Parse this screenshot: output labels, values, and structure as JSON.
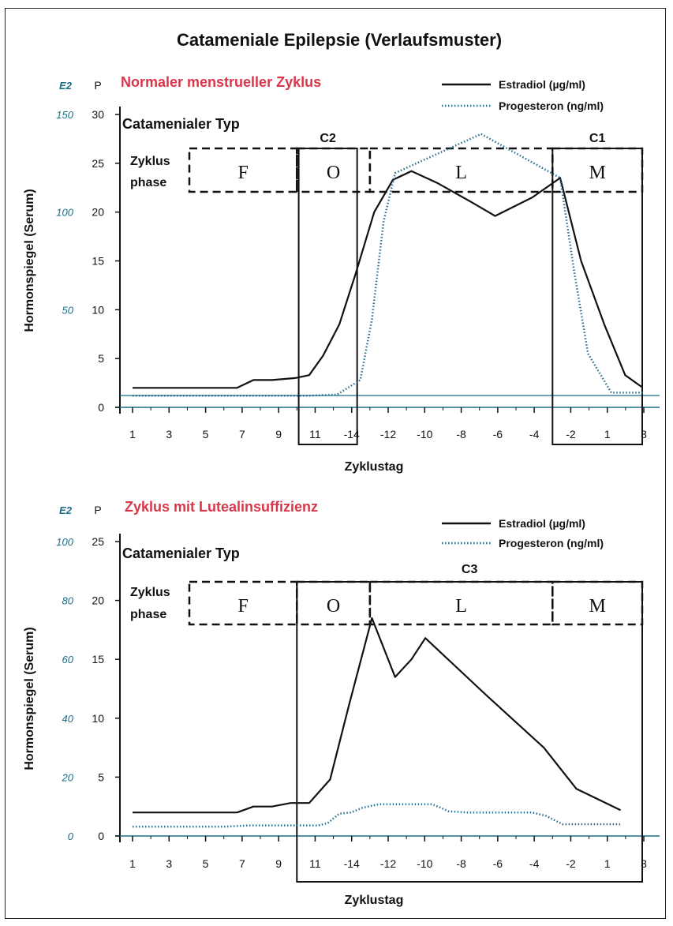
{
  "figure_title": "Catameniale Epilepsie (Verlaufsmuster)",
  "colors": {
    "subtitle": "#d9364a",
    "axis_teal": "#1a6e86",
    "estradiol": "#111111",
    "progesteron": "#2a6e8e",
    "line": "#111111"
  },
  "chart_data": [
    {
      "type": "line",
      "subtitle": "Normaler menstrueller Zyklus",
      "axis_label_e2": "E2",
      "axis_label_p": "P",
      "ylabel": "Hormonspiegel (Serum)",
      "xlabel": "Zyklustag",
      "type_label": "Catamenialer Typ",
      "phase_label_line1": "Zyklus",
      "phase_label_line2": "phase",
      "x_ticks": [
        "1",
        "3",
        "5",
        "7",
        "9",
        "11",
        "-14",
        "-12",
        "-10",
        "-8",
        "-6",
        "-4",
        "-2",
        "1",
        "3"
      ],
      "p_ticks": [
        "0",
        "5",
        "10",
        "15",
        "20",
        "25",
        "30"
      ],
      "p_tick_values": [
        0,
        5,
        10,
        15,
        20,
        25,
        30
      ],
      "e2_ticks": [
        "50",
        "100",
        "150"
      ],
      "e2_tick_values": [
        10,
        20,
        30
      ],
      "ylim_p": [
        0,
        30
      ],
      "legend": [
        "Estradiol (µg/ml)",
        "Progesteron (ng/ml)"
      ],
      "phases": [
        {
          "label": "F",
          "start": 0.5,
          "end": 5.5
        },
        {
          "label": "O",
          "start": 5.5,
          "end": 7.5
        },
        {
          "label": "L",
          "start": 7.5,
          "end": 12.5
        },
        {
          "label": "M",
          "start": 12.5,
          "end": 15.5
        }
      ],
      "catamenial_types": [
        {
          "label": "C2",
          "start": 5.55,
          "end": 7.15
        },
        {
          "label": "C1",
          "start": 12.5,
          "end": 15.45
        }
      ],
      "series": [
        {
          "name": "Estradiol (µg/ml)",
          "style": "solid",
          "points": [
            [
              1,
              2
            ],
            [
              2,
              2
            ],
            [
              3,
              2
            ],
            [
              4,
              2
            ],
            [
              5,
              2
            ],
            [
              5.5,
              2
            ],
            [
              6.2,
              2.8
            ],
            [
              7,
              2.8
            ],
            [
              8,
              3
            ],
            [
              8.6,
              3.3
            ],
            [
              9.2,
              5.3
            ],
            [
              9.9,
              8.5
            ],
            [
              10.6,
              13.7
            ],
            [
              11.4,
              20
            ],
            [
              12.2,
              23.3
            ],
            [
              13,
              24.2
            ],
            [
              14.1,
              23
            ],
            [
              15.6,
              21
            ],
            [
              16.6,
              19.6
            ],
            [
              18.2,
              21.5
            ],
            [
              19.4,
              23.5
            ],
            [
              20.3,
              15
            ],
            [
              21.3,
              8.5
            ],
            [
              22.2,
              3.3
            ],
            [
              22.9,
              2.1
            ]
          ]
        },
        {
          "name": "Progesteron (ng/ml)",
          "style": "dotted",
          "points": [
            [
              1,
              1.2
            ],
            [
              3,
              1.2
            ],
            [
              5,
              1.2
            ],
            [
              7,
              1.2
            ],
            [
              8.6,
              1.2
            ],
            [
              9.8,
              1.3
            ],
            [
              10.8,
              2.8
            ],
            [
              11.3,
              9
            ],
            [
              11.8,
              19
            ],
            [
              12.3,
              24
            ],
            [
              16,
              28
            ],
            [
              19.4,
              23.5
            ],
            [
              20,
              14
            ],
            [
              20.6,
              5.5
            ],
            [
              21.6,
              1.5
            ],
            [
              23,
              1.5
            ]
          ]
        }
      ]
    },
    {
      "type": "line",
      "subtitle": "Zyklus mit Lutealinsuffizienz",
      "axis_label_e2": "E2",
      "axis_label_p": "P",
      "ylabel": "Hormonspiegel (Serum)",
      "xlabel": "Zyklustag",
      "type_label": "Catamenialer Typ",
      "phase_label_line1": "Zyklus",
      "phase_label_line2": "phase",
      "x_ticks": [
        "1",
        "3",
        "5",
        "7",
        "9",
        "11",
        "-14",
        "-12",
        "-10",
        "-8",
        "-6",
        "-4",
        "-2",
        "1",
        "3"
      ],
      "p_ticks": [
        "0",
        "5",
        "10",
        "15",
        "20",
        "25"
      ],
      "p_tick_values": [
        0,
        5,
        10,
        15,
        20,
        25
      ],
      "e2_ticks": [
        "0",
        "20",
        "40",
        "60",
        "80",
        "100"
      ],
      "e2_tick_values": [
        0,
        5,
        10,
        15,
        20,
        25
      ],
      "ylim_p": [
        0,
        25
      ],
      "legend": [
        "Estradiol (µg/ml)",
        "Progesteron (ng/ml)"
      ],
      "phases": [
        {
          "label": "F",
          "start": 0.5,
          "end": 5.5
        },
        {
          "label": "O",
          "start": 5.5,
          "end": 7.5
        },
        {
          "label": "L",
          "start": 7.5,
          "end": 12.5
        },
        {
          "label": "M",
          "start": 12.5,
          "end": 15.5
        }
      ],
      "catamenial_types": [
        {
          "label": "C3",
          "start": 5.5,
          "end": 15.5
        }
      ],
      "series": [
        {
          "name": "Estradiol (µg/ml)",
          "style": "solid",
          "points": [
            [
              1,
              2
            ],
            [
              2,
              2
            ],
            [
              3,
              2
            ],
            [
              4,
              2
            ],
            [
              5,
              2
            ],
            [
              5.5,
              2
            ],
            [
              6.2,
              2.5
            ],
            [
              7,
              2.5
            ],
            [
              7.8,
              2.8
            ],
            [
              8.6,
              2.8
            ],
            [
              9.5,
              4.8
            ],
            [
              10.3,
              11
            ],
            [
              11.3,
              18.5
            ],
            [
              12.3,
              13.5
            ],
            [
              13,
              15
            ],
            [
              13.6,
              16.8
            ],
            [
              16.2,
              12
            ],
            [
              18.7,
              7.5
            ],
            [
              20.1,
              4
            ],
            [
              22,
              2.2
            ]
          ]
        },
        {
          "name": "Progesteron (ng/ml)",
          "style": "dotted",
          "points": [
            [
              1,
              0.8
            ],
            [
              3,
              0.8
            ],
            [
              5,
              0.8
            ],
            [
              6,
              0.9
            ],
            [
              7,
              0.9
            ],
            [
              8,
              0.9
            ],
            [
              9,
              0.9
            ],
            [
              9.4,
              1.1
            ],
            [
              9.9,
              1.9
            ],
            [
              10.4,
              2
            ],
            [
              10.9,
              2.4
            ],
            [
              11.6,
              2.7
            ],
            [
              12.4,
              2.7
            ],
            [
              13.2,
              2.7
            ],
            [
              13.9,
              2.7
            ],
            [
              14.6,
              2.1
            ],
            [
              15.4,
              2
            ],
            [
              16.2,
              2
            ],
            [
              17,
              2
            ],
            [
              18.2,
              2
            ],
            [
              18.8,
              1.7
            ],
            [
              19.5,
              1
            ],
            [
              21,
              1
            ],
            [
              22,
              1
            ]
          ]
        }
      ]
    }
  ]
}
